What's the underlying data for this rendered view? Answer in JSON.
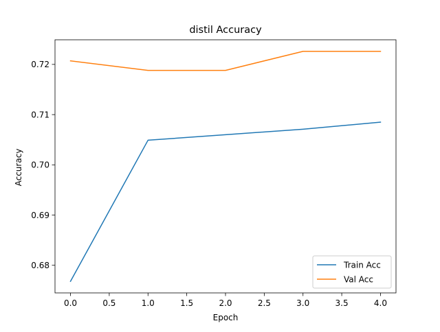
{
  "chart_data": {
    "type": "line",
    "title": "distil Accuracy",
    "xlabel": "Epoch",
    "ylabel": "Accuracy",
    "x": [
      0,
      1,
      2,
      3,
      4
    ],
    "series": [
      {
        "name": "Train Acc",
        "color": "#1f77b4",
        "values": [
          0.6768,
          0.7049,
          0.706,
          0.7071,
          0.7085
        ]
      },
      {
        "name": "Val Acc",
        "color": "#ff7f0e",
        "values": [
          0.7207,
          0.7188,
          0.7188,
          0.7226,
          0.7226
        ]
      }
    ],
    "xlim": [
      -0.2,
      4.2
    ],
    "ylim": [
      0.6745,
      0.7249
    ],
    "xticks": [
      0.0,
      0.5,
      1.0,
      1.5,
      2.0,
      2.5,
      3.0,
      3.5,
      4.0
    ],
    "xtick_labels": [
      "0.0",
      "0.5",
      "1.0",
      "1.5",
      "2.0",
      "2.5",
      "3.0",
      "3.5",
      "4.0"
    ],
    "yticks": [
      0.68,
      0.69,
      0.7,
      0.71,
      0.72
    ],
    "ytick_labels": [
      "0.68",
      "0.69",
      "0.70",
      "0.71",
      "0.72"
    ],
    "grid": false,
    "legend_position": "lower-right"
  }
}
